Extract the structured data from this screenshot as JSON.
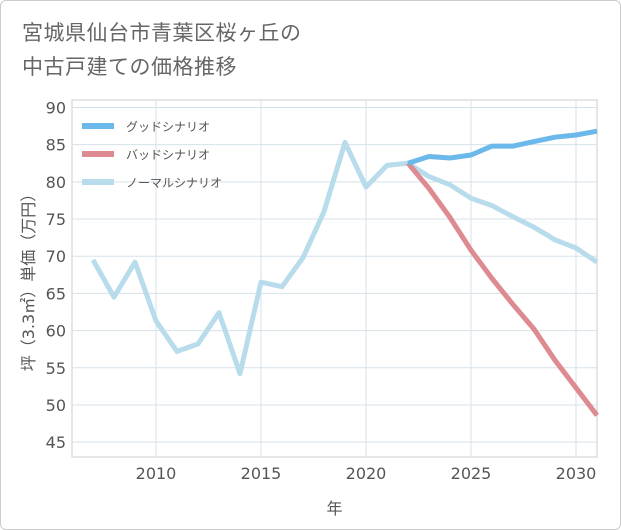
{
  "title_lines": [
    "宮城県仙台市青葉区桜ヶ丘の",
    "中古戸建ての価格推移"
  ],
  "chart_data": {
    "type": "line",
    "xlabel": "年",
    "ylabel": "坪（3.3㎡）単価（万円）",
    "xlim": [
      2006,
      2031
    ],
    "ylim": [
      43,
      91
    ],
    "x_ticks": [
      2010,
      2015,
      2020,
      2025,
      2030
    ],
    "y_ticks": [
      45,
      50,
      55,
      60,
      65,
      70,
      75,
      80,
      85,
      90
    ],
    "grid": true,
    "legend_position": "top-left",
    "series": [
      {
        "name": "グッドシナリオ",
        "color": "#6bb8ea",
        "x": [
          2022,
          2023,
          2024,
          2025,
          2026,
          2027,
          2028,
          2029,
          2030,
          2031
        ],
        "y": [
          82.5,
          83.4,
          83.2,
          83.6,
          84.8,
          84.8,
          85.4,
          86.0,
          86.3,
          86.8
        ]
      },
      {
        "name": "バッドシナリオ",
        "color": "#dd8a90",
        "x": [
          2022,
          2023,
          2024,
          2025,
          2026,
          2027,
          2028,
          2029,
          2030,
          2031
        ],
        "y": [
          82.5,
          79.1,
          75.2,
          70.8,
          67.0,
          63.5,
          60.2,
          56.0,
          52.3,
          48.6
        ]
      },
      {
        "name": "ノーマルシナリオ",
        "color": "#b8dcec",
        "x": [
          2007,
          2008,
          2009,
          2010,
          2011,
          2012,
          2013,
          2014,
          2015,
          2016,
          2017,
          2018,
          2019,
          2020,
          2021,
          2022,
          2023,
          2024,
          2025,
          2026,
          2027,
          2028,
          2029,
          2030,
          2031
        ],
        "y": [
          69.5,
          64.5,
          69.2,
          61.3,
          57.2,
          58.2,
          62.4,
          54.2,
          66.5,
          65.9,
          69.8,
          76.0,
          85.3,
          79.3,
          82.2,
          82.5,
          80.7,
          79.6,
          77.8,
          76.8,
          75.3,
          73.9,
          72.2,
          71.1,
          69.2
        ]
      }
    ]
  }
}
